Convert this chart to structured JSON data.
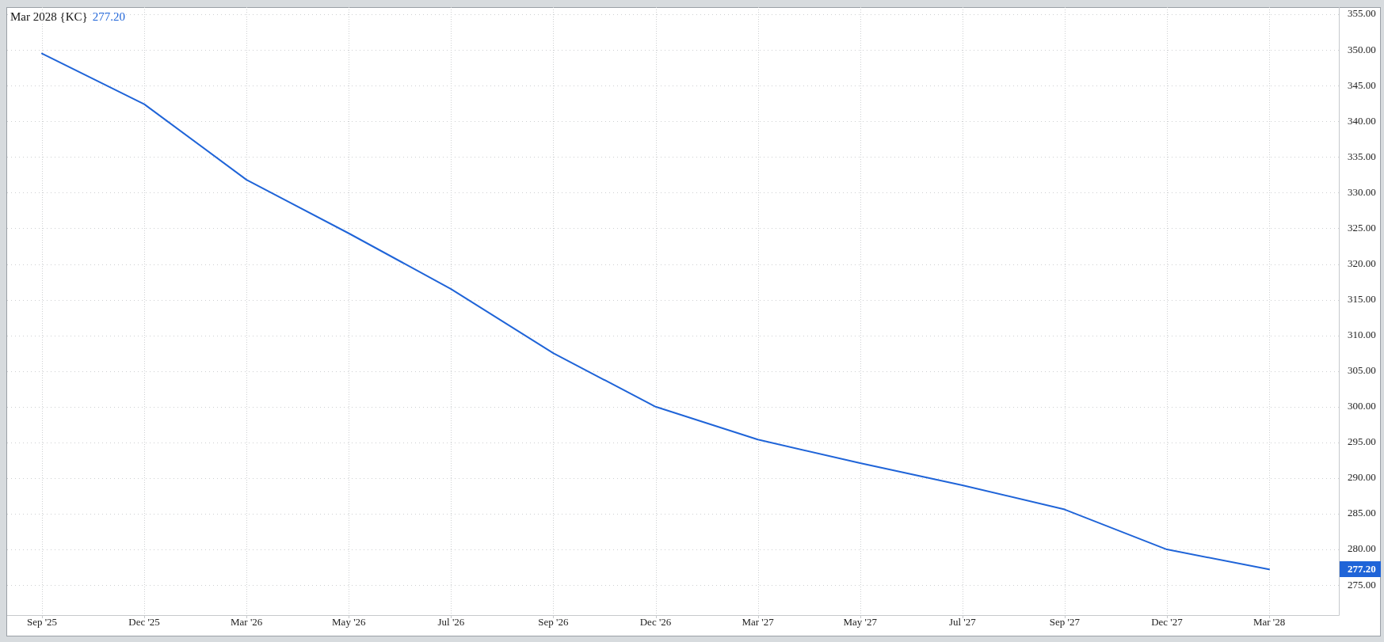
{
  "chart_data": {
    "type": "line",
    "title": "Mar 2028 {KC}",
    "subtitle": "277.20",
    "categories": [
      "Sep '25",
      "Dec '25",
      "Mar '26",
      "May '26",
      "Jul '26",
      "Sep '26",
      "Dec '26",
      "Mar '27",
      "May '27",
      "Jul '27",
      "Sep '27",
      "Dec '27",
      "Mar '28"
    ],
    "values": [
      349.5,
      342.4,
      331.8,
      324.3,
      316.5,
      307.5,
      300.0,
      295.4,
      292.1,
      289.0,
      285.6,
      280.0,
      277.2
    ],
    "color": "#1f64d8",
    "ylim": [
      270.8,
      356
    ],
    "yticks": [
      {
        "value": 275,
        "label": "275.00"
      },
      {
        "value": 280,
        "label": "280.00"
      },
      {
        "value": 285,
        "label": "285.00"
      },
      {
        "value": 290,
        "label": "290.00"
      },
      {
        "value": 295,
        "label": "295.00"
      },
      {
        "value": 300,
        "label": "300.00"
      },
      {
        "value": 305,
        "label": "305.00"
      },
      {
        "value": 310,
        "label": "310.00"
      },
      {
        "value": 315,
        "label": "315.00"
      },
      {
        "value": 320,
        "label": "320.00"
      },
      {
        "value": 325,
        "label": "325.00"
      },
      {
        "value": 330,
        "label": "330.00"
      },
      {
        "value": 335,
        "label": "335.00"
      },
      {
        "value": 340,
        "label": "340.00"
      },
      {
        "value": 345,
        "label": "345.00"
      },
      {
        "value": 350,
        "label": "350.00"
      },
      {
        "value": 355,
        "label": "355.00"
      }
    ],
    "grid": true,
    "marker": "none",
    "annotations": [
      "277.20"
    ]
  }
}
